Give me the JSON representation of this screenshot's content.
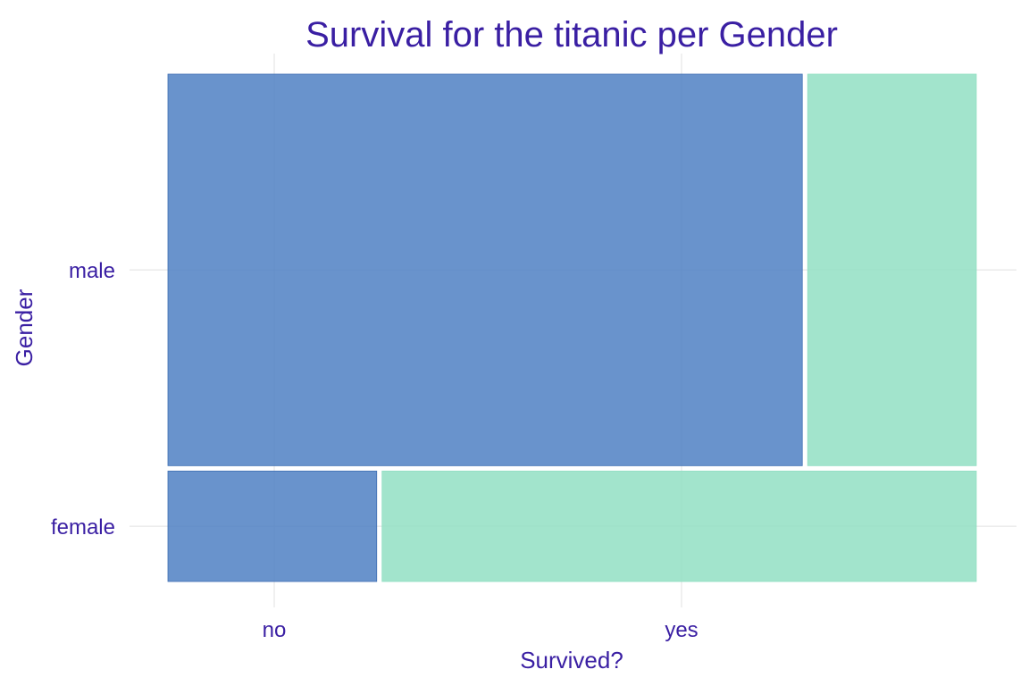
{
  "chart_data": {
    "type": "mosaic",
    "title": "Survival for the titanic per Gender",
    "xlabel": "Survived?",
    "ylabel": "Gender",
    "x_ticks": [
      "no",
      "yes"
    ],
    "y_categories": [
      "female",
      "male"
    ],
    "y_shares": [
      0.22,
      0.78
    ],
    "fill_categories": [
      "no",
      "yes"
    ],
    "proportions": {
      "male": {
        "no": 0.79,
        "yes": 0.21
      },
      "female": {
        "no": 0.26,
        "yes": 0.74
      }
    },
    "grid": true,
    "legend": "none"
  },
  "colors": {
    "text": "#3a1fa3",
    "grid": "#e0e0e0",
    "no": "#4f80c3",
    "yes": "#92dfc3",
    "background": "#ffffff"
  }
}
